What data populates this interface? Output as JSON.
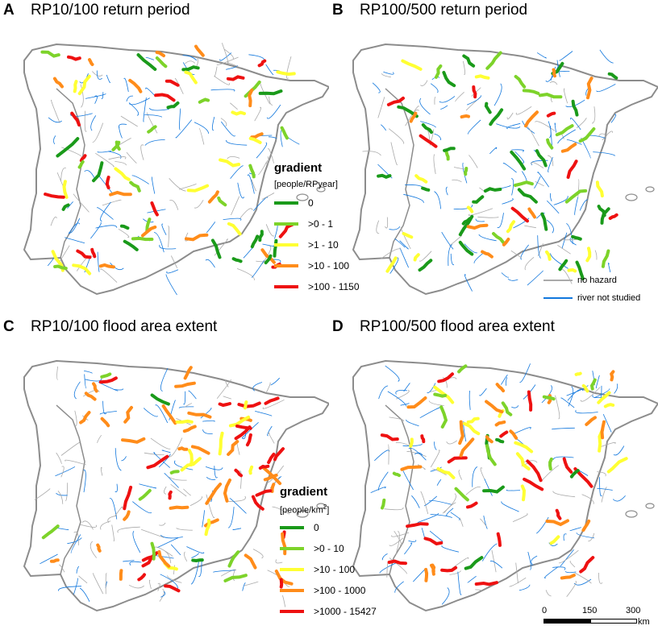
{
  "panels": [
    {
      "letter": "A",
      "title": "RP10/100 return period"
    },
    {
      "letter": "B",
      "title": "RP100/500 return period"
    },
    {
      "letter": "C",
      "title": "RP10/100 flood area extent"
    },
    {
      "letter": "D",
      "title": "RP100/500 flood area extent"
    }
  ],
  "legend_top": {
    "title": "gradient",
    "unit": "[people/RPyear]",
    "items": [
      {
        "label": "0",
        "color": "#1a9a1a"
      },
      {
        "label": ">0 - 1",
        "color": "#7dd32a"
      },
      {
        "label": ">1 - 10",
        "color": "#ffff33"
      },
      {
        "label": ">10 - 100",
        "color": "#ff8c1a"
      },
      {
        "label": ">100 - 1150",
        "color": "#ee1111"
      }
    ]
  },
  "legend_bottom": {
    "title": "gradient",
    "unit_prefix": "[people/km",
    "unit_sup": "2",
    "unit_suffix": "]",
    "items": [
      {
        "label": "0",
        "color": "#1a9a1a"
      },
      {
        "label": ">0 - 10",
        "color": "#7dd32a"
      },
      {
        "label": ">10 - 100",
        "color": "#ffff33"
      },
      {
        "label": ">100 - 1000",
        "color": "#ff8c1a"
      },
      {
        "label": ">1000 - 15427",
        "color": "#ee1111"
      }
    ]
  },
  "legend_lines": [
    {
      "label": "no hazard",
      "color": "#aaaaaa"
    },
    {
      "label": "river not studied",
      "color": "#1177dd"
    }
  ],
  "scale": {
    "ticks": [
      "0",
      "150",
      "300"
    ],
    "unit": "km"
  },
  "colors": {
    "coast": "#8c8c8c",
    "river": "#1177dd",
    "nohazard": "#aaaaaa"
  }
}
